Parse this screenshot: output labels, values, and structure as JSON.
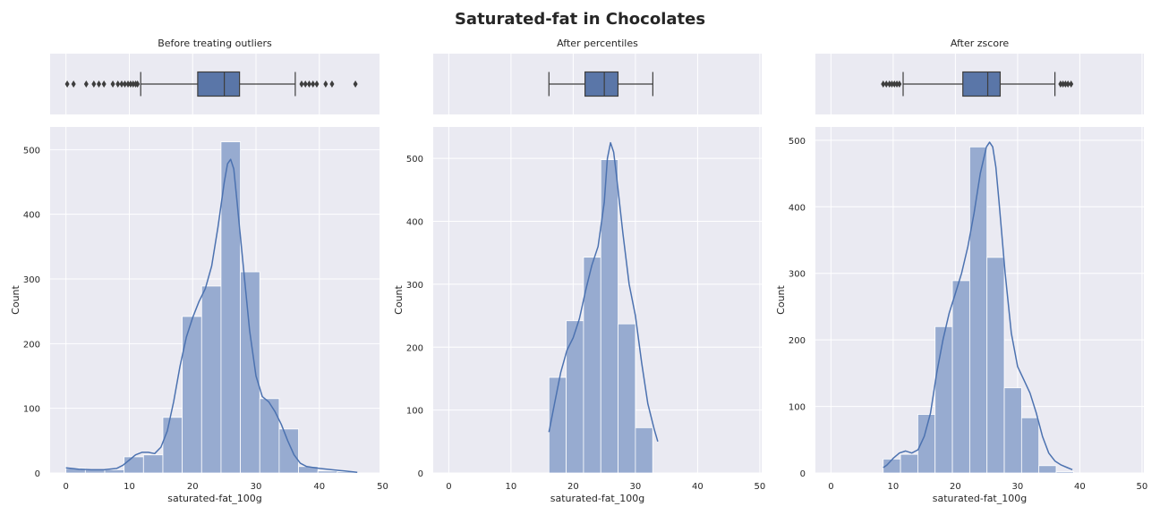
{
  "title": "Saturated-fat in Chocolates",
  "colors": {
    "panel_bg": "#eaeaf2",
    "grid": "#ffffff",
    "box_fill": "#5a76a8",
    "box_edge": "#3d3d3d",
    "bar_fill": "#97abd0",
    "kde_line": "#4c72b0"
  },
  "chart_data": [
    {
      "type": "histogram",
      "title": "Before treating outliers",
      "xlabel": "saturated-fat_100g",
      "ylabel": "Count",
      "x_ticks": [
        0,
        10,
        20,
        30,
        40,
        50
      ],
      "y_ticks": [
        0,
        100,
        200,
        300,
        400,
        500
      ],
      "xlim": [
        -2.5,
        49.5
      ],
      "ylim": [
        0,
        535
      ],
      "grid": true,
      "bin_width": 3.06,
      "bins": [
        {
          "x0": 0.0,
          "count": 7
        },
        {
          "x0": 3.06,
          "count": 5
        },
        {
          "x0": 6.12,
          "count": 5
        },
        {
          "x0": 9.18,
          "count": 25
        },
        {
          "x0": 12.24,
          "count": 28
        },
        {
          "x0": 15.3,
          "count": 86
        },
        {
          "x0": 18.36,
          "count": 242
        },
        {
          "x0": 21.42,
          "count": 289
        },
        {
          "x0": 24.48,
          "count": 512
        },
        {
          "x0": 27.54,
          "count": 311
        },
        {
          "x0": 30.6,
          "count": 115
        },
        {
          "x0": 33.66,
          "count": 68
        },
        {
          "x0": 36.72,
          "count": 10
        },
        {
          "x0": 39.78,
          "count": 3
        },
        {
          "x0": 42.84,
          "count": 2
        }
      ],
      "kde": {
        "x": [
          0,
          2,
          4,
          6,
          8,
          9,
          10,
          11,
          12,
          13,
          14,
          15,
          16,
          17,
          18,
          19,
          20,
          21,
          22,
          23,
          24,
          25,
          25.5,
          26,
          26.5,
          27,
          28,
          29,
          30,
          31,
          32,
          33,
          34,
          35,
          36,
          37,
          38,
          40,
          42,
          44,
          46
        ],
        "y": [
          8,
          6,
          5,
          5,
          7,
          12,
          20,
          28,
          32,
          32,
          30,
          40,
          65,
          110,
          165,
          210,
          240,
          265,
          285,
          320,
          380,
          450,
          478,
          485,
          470,
          420,
          320,
          220,
          150,
          118,
          110,
          95,
          75,
          50,
          28,
          15,
          10,
          7,
          5,
          3,
          1
        ]
      },
      "box": {
        "whisker_low": 11.8,
        "q1": 20.8,
        "median": 25.0,
        "q3": 27.4,
        "whisker_high": 36.2,
        "outliers": [
          0.2,
          1.2,
          3.2,
          4.4,
          5.2,
          6.0,
          7.4,
          8.2,
          8.8,
          9.3,
          9.8,
          10.2,
          10.6,
          11.0,
          11.3,
          37.2,
          37.8,
          38.4,
          39.0,
          39.6,
          41.0,
          42.0,
          45.7
        ]
      }
    },
    {
      "type": "histogram",
      "title": "After percentiles",
      "xlabel": "saturated-fat_100g",
      "ylabel": "Count",
      "x_ticks": [
        0,
        10,
        20,
        30,
        40,
        50
      ],
      "y_ticks": [
        0,
        100,
        200,
        300,
        400,
        500
      ],
      "xlim": [
        -2.5,
        50.3
      ],
      "ylim": [
        0,
        550
      ],
      "grid": true,
      "bin_width": 2.78,
      "bins": [
        {
          "x0": 16.1,
          "count": 152
        },
        {
          "x0": 18.88,
          "count": 242
        },
        {
          "x0": 21.66,
          "count": 343
        },
        {
          "x0": 24.44,
          "count": 498
        },
        {
          "x0": 27.22,
          "count": 237
        },
        {
          "x0": 30.0,
          "count": 72
        }
      ],
      "kde": {
        "x": [
          16.1,
          17,
          18,
          19,
          20,
          21,
          22,
          23,
          24,
          25,
          25.5,
          26,
          26.5,
          27,
          28,
          29,
          30,
          31,
          32,
          33,
          33.6
        ],
        "y": [
          65,
          110,
          160,
          195,
          215,
          245,
          290,
          330,
          360,
          430,
          500,
          525,
          510,
          470,
          380,
          300,
          250,
          175,
          110,
          70,
          50
        ]
      },
      "box": {
        "whisker_low": 16.1,
        "q1": 21.9,
        "median": 25.0,
        "q3": 27.2,
        "whisker_high": 32.8,
        "outliers": []
      }
    },
    {
      "type": "histogram",
      "title": "After zscore",
      "xlabel": "saturated-fat_100g",
      "ylabel": "Count",
      "x_ticks": [
        0,
        10,
        20,
        30,
        40,
        50
      ],
      "y_ticks": [
        0,
        100,
        200,
        300,
        400,
        500
      ],
      "xlim": [
        -2.5,
        50.3
      ],
      "ylim": [
        0,
        520
      ],
      "grid": true,
      "bin_width": 2.78,
      "bins": [
        {
          "x0": 8.4,
          "count": 21
        },
        {
          "x0": 11.18,
          "count": 28
        },
        {
          "x0": 13.96,
          "count": 88
        },
        {
          "x0": 16.74,
          "count": 220
        },
        {
          "x0": 19.52,
          "count": 289
        },
        {
          "x0": 22.3,
          "count": 490
        },
        {
          "x0": 25.08,
          "count": 324
        },
        {
          "x0": 27.86,
          "count": 128
        },
        {
          "x0": 30.64,
          "count": 83
        },
        {
          "x0": 33.42,
          "count": 11
        },
        {
          "x0": 36.2,
          "count": 2
        }
      ],
      "kde": {
        "x": [
          8.4,
          9,
          10,
          11,
          12,
          13,
          14,
          15,
          16,
          17,
          18,
          19,
          20,
          21,
          22,
          23,
          24,
          25,
          25.5,
          26,
          26.5,
          27,
          28,
          29,
          30,
          31,
          32,
          33,
          34,
          35,
          36,
          37,
          38,
          38.8
        ],
        "y": [
          8,
          12,
          22,
          30,
          33,
          30,
          35,
          55,
          90,
          150,
          200,
          240,
          270,
          300,
          340,
          390,
          450,
          490,
          497,
          490,
          460,
          410,
          300,
          210,
          160,
          140,
          120,
          90,
          55,
          30,
          18,
          12,
          8,
          5
        ]
      },
      "box": {
        "whisker_low": 11.6,
        "q1": 21.2,
        "median": 25.2,
        "q3": 27.2,
        "whisker_high": 36.0,
        "outliers": [
          8.4,
          8.9,
          9.4,
          9.8,
          10.2,
          10.6,
          11.0,
          36.9,
          37.3,
          37.7,
          38.1,
          38.6
        ]
      }
    }
  ]
}
